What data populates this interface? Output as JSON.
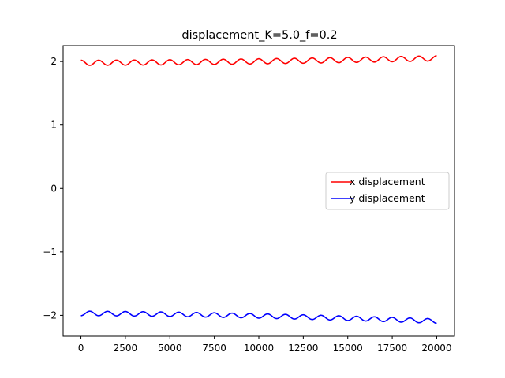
{
  "chart_data": {
    "type": "line",
    "title": "displacement_K=5.0_f=0.2",
    "xlabel": "",
    "ylabel": "",
    "xlim": [
      -1000,
      21000
    ],
    "ylim": [
      -2.33,
      2.25
    ],
    "xticks": [
      0,
      2500,
      5000,
      7500,
      10000,
      12500,
      15000,
      17500,
      20000
    ],
    "xtick_labels": [
      "0",
      "2500",
      "5000",
      "7500",
      "10000",
      "12500",
      "15000",
      "17500",
      "20000"
    ],
    "yticks": [
      -2,
      -1,
      0,
      1,
      2
    ],
    "ytick_labels": [
      "−2",
      "−1",
      "0",
      "1",
      "2"
    ],
    "grid": false,
    "legend_position": "center-right",
    "series": [
      {
        "name": "x displacement",
        "color": "#ff0000",
        "model": {
          "offset": 1.98,
          "drift_end": 0.07,
          "amplitude": 0.04,
          "period": 1000,
          "phase": 1.5708,
          "x_start": 0,
          "x_end": 20000,
          "n_points": 800
        }
      },
      {
        "name": "y displacement",
        "color": "#0000ff",
        "model": {
          "offset": -1.97,
          "drift_end": -0.12,
          "amplitude": 0.035,
          "period": 1000,
          "phase": -1.5708,
          "x_start": 0,
          "x_end": 20000,
          "n_points": 800
        }
      }
    ]
  }
}
